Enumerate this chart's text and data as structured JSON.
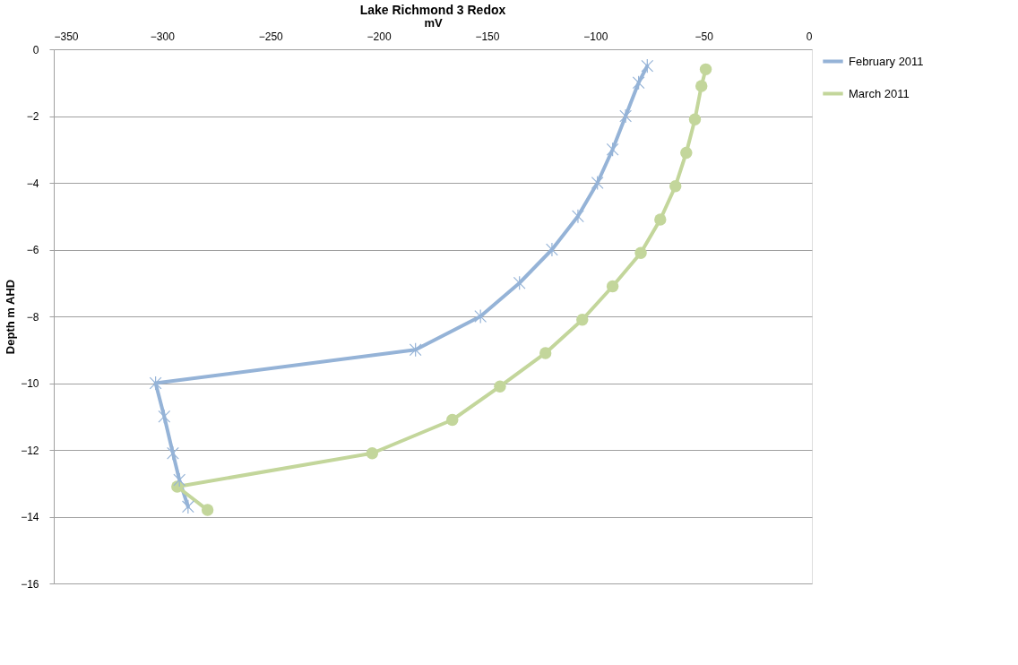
{
  "chart_data": {
    "type": "line",
    "title": "Lake Richmond  3 Redox",
    "xlabel": "mV",
    "ylabel": "Depth m AHD",
    "xlim": [
      -350,
      0
    ],
    "xticks": [
      -350,
      -300,
      -250,
      -200,
      -150,
      -100,
      -50,
      0
    ],
    "ylim": [
      -16,
      0
    ],
    "yticks": [
      -16,
      -14,
      -12,
      -10,
      -8,
      -6,
      -4,
      -2,
      0
    ],
    "grid": "y",
    "legend": "right",
    "line_style": "solid",
    "series": [
      {
        "name": "February 2011",
        "color": "#95b3d7",
        "marker": "cross",
        "x": [
          -76,
          -80,
          -86,
          -92,
          -99,
          -108,
          -120,
          -135,
          -153,
          -183,
          -303,
          -299,
          -295,
          -292,
          -288
        ],
        "values": [
          -0.5,
          -1.0,
          -2.0,
          -3.0,
          -4.0,
          -5.0,
          -6.0,
          -7.0,
          -8.0,
          -9.0,
          -10.0,
          -11.0,
          -12.1,
          -12.9,
          -13.7
        ]
      },
      {
        "name": "March 2011",
        "color": "#c3d69b",
        "marker": "circle",
        "x": [
          -49,
          -51,
          -54,
          -58,
          -63,
          -70,
          -79,
          -92,
          -106,
          -123,
          -144,
          -166,
          -203,
          -293,
          -279
        ],
        "values": [
          -0.6,
          -1.1,
          -2.1,
          -3.1,
          -4.1,
          -5.1,
          -6.1,
          -7.1,
          -8.1,
          -9.1,
          -10.1,
          -11.1,
          -12.1,
          -13.1,
          -13.8
        ]
      }
    ]
  }
}
